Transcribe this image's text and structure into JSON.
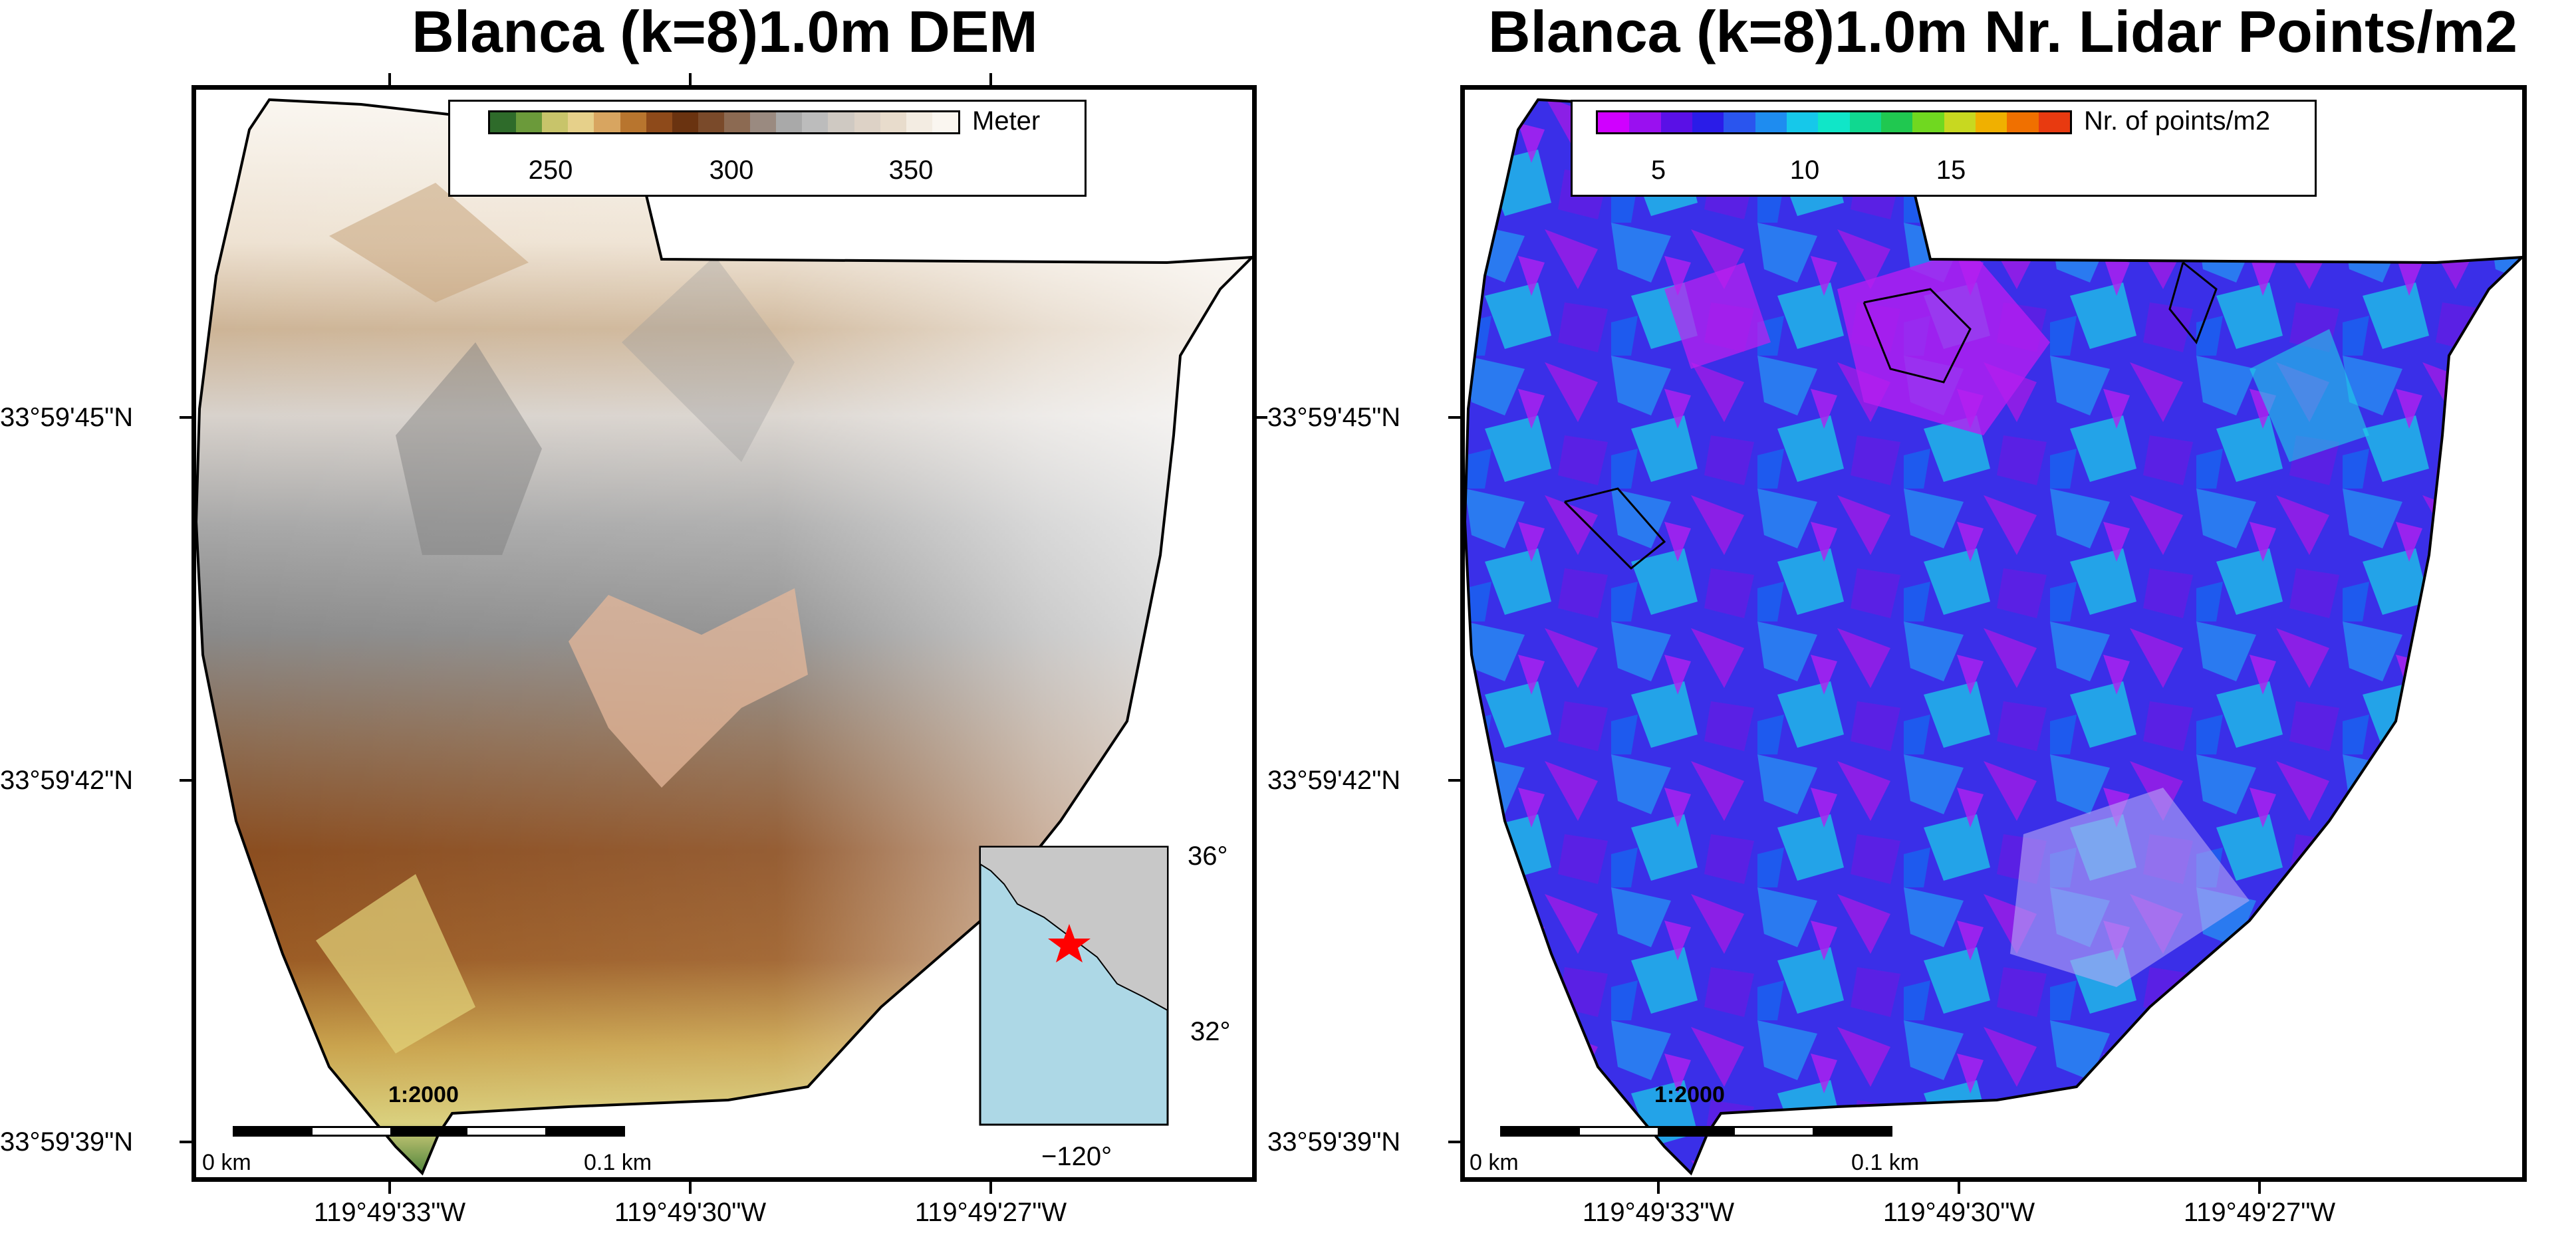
{
  "titles": {
    "left": "Blanca (k=8)1.0m DEM",
    "right": "Blanca (k=8)1.0m Nr. Lidar Points/m2"
  },
  "latitude_labels": [
    "33°59'45\"N",
    "33°59'42\"N",
    "33°59'39\"N"
  ],
  "longitude_labels": [
    "119°49'33\"W",
    "119°49'30\"W",
    "119°49'27\"W"
  ],
  "dem_colorbar": {
    "unit": "Meter",
    "ticks": [
      "250",
      "300",
      "350"
    ],
    "range": [
      230,
      362
    ],
    "colors": [
      "#2e6b2a",
      "#6b9a3a",
      "#c8c46a",
      "#e6d08a",
      "#d8a560",
      "#b8752e",
      "#8e4a1a",
      "#6a3310",
      "#7a4a2a",
      "#8c6a52",
      "#9a8a80",
      "#a9a9a9",
      "#bcbcbc",
      "#cfc9c2",
      "#ddd2c6",
      "#e8dccc",
      "#f3ece2",
      "#faf6f0"
    ]
  },
  "density_colorbar": {
    "unit": "Nr. of points/m2",
    "ticks": [
      "5",
      "10",
      "15"
    ],
    "range": [
      3,
      19
    ],
    "colors": [
      "#d000ff",
      "#9a10f0",
      "#5a10e6",
      "#2a1ce8",
      "#2a55ee",
      "#1e8cf0",
      "#16c8ea",
      "#10e6c8",
      "#10d890",
      "#20c850",
      "#70d820",
      "#c8d820",
      "#f0b000",
      "#f07000",
      "#e83a10"
    ]
  },
  "scalebar": {
    "start_label": "0 km",
    "end_label": "0.1 km",
    "ratio": "1:2000"
  },
  "inset": {
    "lat_labels": [
      "36°",
      "32°"
    ],
    "lon_label": "−120°",
    "land_color": "#c8c8c8",
    "water_color": "#add8e6",
    "marker_color": "#ff0000"
  }
}
